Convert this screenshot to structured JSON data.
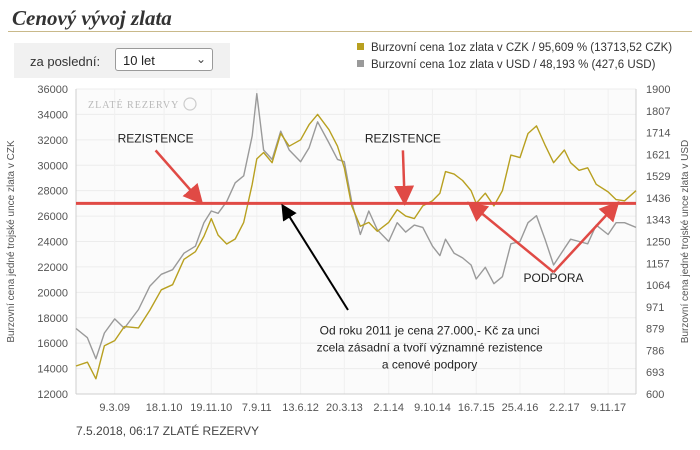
{
  "page": {
    "title": "Cenový vývoj zlata",
    "filter_label": "za poslední:",
    "filter_value": "10 let",
    "footer": "7.5.2018, 06:17 ZLATÉ REZERVY"
  },
  "chart_data": {
    "type": "line",
    "title": "Cenový vývoj zlata",
    "watermark": "ZLATÉ REZERVY",
    "ylabel_left": "Burzovní cena jedné trojské unce zlata v CZK",
    "ylabel_right": "Burzovní cena jedné trojské unce zlata v USD",
    "ylim_left": [
      12000,
      36000
    ],
    "ylim_right": [
      600,
      1900
    ],
    "yticks_left": [
      "12000",
      "14000",
      "16000",
      "18000",
      "20000",
      "22000",
      "24000",
      "26000",
      "28000",
      "30000",
      "32000",
      "34000",
      "36000"
    ],
    "yticks_right": [
      "600",
      "693",
      "786",
      "879",
      "971",
      "1064",
      "1157",
      "1250",
      "1343",
      "1436",
      "1529",
      "1621",
      "1714",
      "1807",
      "1900"
    ],
    "xticks": [
      "9.3.09",
      "18.1.10",
      "19.11.10",
      "7.9.11",
      "13.6.12",
      "20.3.13",
      "2.1.14",
      "9.10.14",
      "16.7.15",
      "25.4.16",
      "2.2.17",
      "9.11.17"
    ],
    "xtick_years": [
      2009.18,
      2010.05,
      2010.88,
      2011.68,
      2012.45,
      2013.22,
      2014.0,
      2014.77,
      2015.54,
      2016.31,
      2017.09,
      2017.86
    ],
    "xlim": [
      2008.5,
      2018.35
    ],
    "series": [
      {
        "name": "Burzovní cena 1oz zlata v CZK / 95,609 % (13713,52 CZK)",
        "color": "#b8a020",
        "axis": "left",
        "points": [
          [
            2008.5,
            14200
          ],
          [
            2008.7,
            14500
          ],
          [
            2008.85,
            13200
          ],
          [
            2009.0,
            15800
          ],
          [
            2009.18,
            16200
          ],
          [
            2009.35,
            17300
          ],
          [
            2009.6,
            17200
          ],
          [
            2009.8,
            18600
          ],
          [
            2010.0,
            20200
          ],
          [
            2010.2,
            20600
          ],
          [
            2010.4,
            22600
          ],
          [
            2010.6,
            23200
          ],
          [
            2010.75,
            24400
          ],
          [
            2010.88,
            25800
          ],
          [
            2011.0,
            24500
          ],
          [
            2011.15,
            23800
          ],
          [
            2011.3,
            24200
          ],
          [
            2011.45,
            25500
          ],
          [
            2011.6,
            28500
          ],
          [
            2011.68,
            30500
          ],
          [
            2011.8,
            31000
          ],
          [
            2011.95,
            30200
          ],
          [
            2012.1,
            32500
          ],
          [
            2012.25,
            31500
          ],
          [
            2012.45,
            32000
          ],
          [
            2012.6,
            33200
          ],
          [
            2012.75,
            34000
          ],
          [
            2012.95,
            32800
          ],
          [
            2013.1,
            31500
          ],
          [
            2013.22,
            29800
          ],
          [
            2013.35,
            26800
          ],
          [
            2013.5,
            25200
          ],
          [
            2013.65,
            25500
          ],
          [
            2013.8,
            24800
          ],
          [
            2014.0,
            25500
          ],
          [
            2014.15,
            26500
          ],
          [
            2014.3,
            26000
          ],
          [
            2014.45,
            25800
          ],
          [
            2014.6,
            26800
          ],
          [
            2014.77,
            27200
          ],
          [
            2014.9,
            27800
          ],
          [
            2015.0,
            29500
          ],
          [
            2015.15,
            29300
          ],
          [
            2015.3,
            28800
          ],
          [
            2015.45,
            28000
          ],
          [
            2015.54,
            27000
          ],
          [
            2015.7,
            27800
          ],
          [
            2015.85,
            26800
          ],
          [
            2016.0,
            28000
          ],
          [
            2016.15,
            30800
          ],
          [
            2016.31,
            30600
          ],
          [
            2016.45,
            32500
          ],
          [
            2016.6,
            33100
          ],
          [
            2016.75,
            31600
          ],
          [
            2016.9,
            30200
          ],
          [
            2017.09,
            31200
          ],
          [
            2017.2,
            30200
          ],
          [
            2017.35,
            29600
          ],
          [
            2017.5,
            29800
          ],
          [
            2017.65,
            28500
          ],
          [
            2017.86,
            27900
          ],
          [
            2018.0,
            27300
          ],
          [
            2018.15,
            27200
          ],
          [
            2018.35,
            28000
          ]
        ]
      },
      {
        "name": "Burzovní cena 1oz zlata v USD / 48,193 % (427,6 USD)",
        "color": "#9a9a9a",
        "axis": "right",
        "points": [
          [
            2008.5,
            879
          ],
          [
            2008.7,
            840
          ],
          [
            2008.85,
            750
          ],
          [
            2009.0,
            860
          ],
          [
            2009.18,
            920
          ],
          [
            2009.35,
            880
          ],
          [
            2009.6,
            960
          ],
          [
            2009.8,
            1060
          ],
          [
            2010.0,
            1110
          ],
          [
            2010.2,
            1130
          ],
          [
            2010.4,
            1200
          ],
          [
            2010.6,
            1230
          ],
          [
            2010.75,
            1330
          ],
          [
            2010.88,
            1380
          ],
          [
            2011.0,
            1370
          ],
          [
            2011.15,
            1420
          ],
          [
            2011.3,
            1500
          ],
          [
            2011.45,
            1530
          ],
          [
            2011.6,
            1700
          ],
          [
            2011.68,
            1880
          ],
          [
            2011.8,
            1640
          ],
          [
            2011.95,
            1600
          ],
          [
            2012.1,
            1720
          ],
          [
            2012.25,
            1640
          ],
          [
            2012.45,
            1590
          ],
          [
            2012.6,
            1650
          ],
          [
            2012.75,
            1760
          ],
          [
            2012.95,
            1670
          ],
          [
            2013.1,
            1600
          ],
          [
            2013.22,
            1590
          ],
          [
            2013.35,
            1420
          ],
          [
            2013.5,
            1280
          ],
          [
            2013.65,
            1380
          ],
          [
            2013.8,
            1300
          ],
          [
            2014.0,
            1250
          ],
          [
            2014.15,
            1330
          ],
          [
            2014.3,
            1290
          ],
          [
            2014.45,
            1320
          ],
          [
            2014.6,
            1310
          ],
          [
            2014.77,
            1230
          ],
          [
            2014.9,
            1190
          ],
          [
            2015.0,
            1260
          ],
          [
            2015.15,
            1200
          ],
          [
            2015.3,
            1180
          ],
          [
            2015.45,
            1150
          ],
          [
            2015.54,
            1090
          ],
          [
            2015.7,
            1140
          ],
          [
            2015.85,
            1070
          ],
          [
            2016.0,
            1100
          ],
          [
            2016.15,
            1240
          ],
          [
            2016.31,
            1250
          ],
          [
            2016.45,
            1330
          ],
          [
            2016.6,
            1360
          ],
          [
            2016.75,
            1260
          ],
          [
            2016.9,
            1150
          ],
          [
            2017.09,
            1220
          ],
          [
            2017.2,
            1260
          ],
          [
            2017.35,
            1250
          ],
          [
            2017.5,
            1240
          ],
          [
            2017.65,
            1320
          ],
          [
            2017.86,
            1280
          ],
          [
            2018.0,
            1330
          ],
          [
            2018.15,
            1330
          ],
          [
            2018.35,
            1310
          ]
        ]
      }
    ],
    "reference_line": {
      "value": 27000,
      "axis": "left",
      "color": "#e04a45"
    },
    "annotations": [
      {
        "text": "REZISTENCE",
        "tx": 2009.9,
        "ty": 31800,
        "ax": 2010.68,
        "ay": 27200
      },
      {
        "text": "REZISTENCE",
        "tx": 2014.25,
        "ty": 31800,
        "ax": 2014.28,
        "ay": 27200
      },
      {
        "text": "PODPORA",
        "tx": 2016.9,
        "ty": 20800,
        "ax": 2015.45,
        "ay": 26900
      },
      {
        "text": "PODPORA",
        "tx": 2016.9,
        "ty": 20800,
        "ax": 2018.0,
        "ay": 26900
      },
      {
        "text": "Od roku 2011 je cena 27.000,- Kč za unci\nzcela zásadní a tvoří významné rezistence\na cenové podpory",
        "tx": 2014.72,
        "ty": 16700,
        "ax": 2012.15,
        "ay": 26700,
        "arrow_color": "#000000"
      }
    ],
    "grid": true,
    "legend_position": "top-right"
  }
}
